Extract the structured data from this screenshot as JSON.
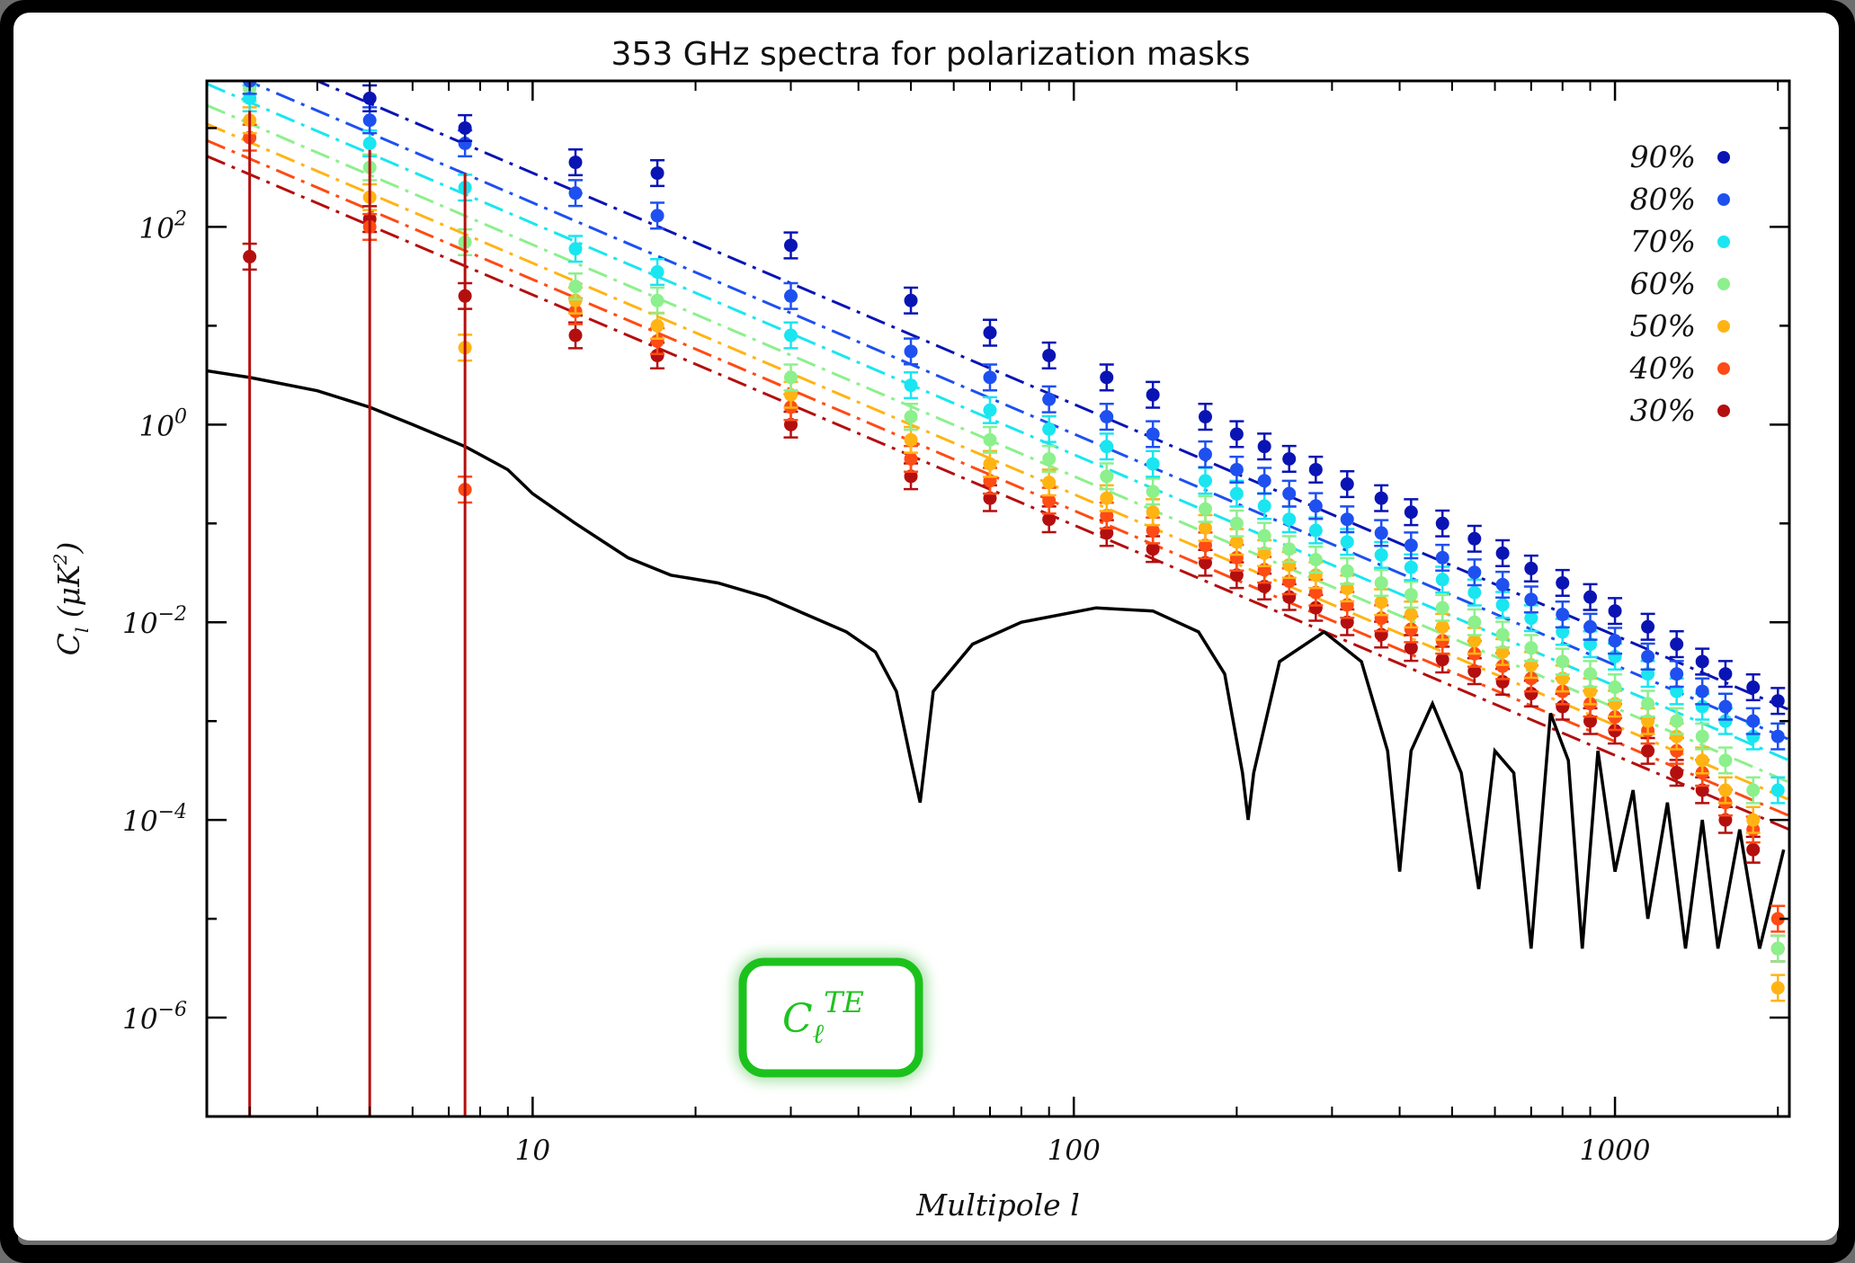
{
  "chart_data": {
    "type": "scatter",
    "title": "353 GHz spectra for polarization masks",
    "xlabel": "Multipole l",
    "ylabel": "C_l (μK²)",
    "x_scale": "log",
    "y_scale": "log",
    "xlim": [
      2.5,
      2100
    ],
    "ylim": [
      1e-07,
      3000
    ],
    "x_ticks": [
      {
        "value": 10,
        "label": "10"
      },
      {
        "value": 100,
        "label": "100"
      },
      {
        "value": 1000,
        "label": "1000"
      }
    ],
    "y_ticks": [
      {
        "value": 1e-06,
        "base": "10",
        "exp": "−6"
      },
      {
        "value": 0.0001,
        "base": "10",
        "exp": "−4"
      },
      {
        "value": 0.01,
        "base": "10",
        "exp": "−2"
      },
      {
        "value": 1,
        "base": "10",
        "exp": "0"
      },
      {
        "value": 100,
        "base": "10",
        "exp": "2"
      }
    ],
    "legend_position": "top-right",
    "annotation": {
      "base": "C",
      "sub": "ℓ",
      "sup": "TE",
      "color": "#1fc21f"
    },
    "x": [
      3,
      5,
      7.5,
      12,
      17,
      30,
      50,
      70,
      90,
      115,
      140,
      175,
      200,
      225,
      250,
      280,
      320,
      370,
      420,
      480,
      550,
      620,
      700,
      800,
      900,
      1000,
      1150,
      1300,
      1450,
      1600,
      1800,
      2000
    ],
    "series": [
      {
        "name": "90%",
        "color": "#0a14b4",
        "values": [
          6000,
          2000,
          1000,
          450,
          350,
          65,
          18,
          8.5,
          5,
          3,
          2,
          1.2,
          0.8,
          0.6,
          0.45,
          0.35,
          0.25,
          0.18,
          0.13,
          0.1,
          0.07,
          0.05,
          0.035,
          0.025,
          0.018,
          0.013,
          0.009,
          0.006,
          0.004,
          0.003,
          0.0022,
          0.0016
        ]
      },
      {
        "name": "80%",
        "color": "#1e50f0",
        "values": [
          3000,
          1200,
          700,
          220,
          130,
          20,
          5.5,
          3,
          1.8,
          1.2,
          0.8,
          0.5,
          0.35,
          0.27,
          0.2,
          0.15,
          0.11,
          0.08,
          0.06,
          0.045,
          0.032,
          0.024,
          0.017,
          0.012,
          0.009,
          0.0065,
          0.0045,
          0.003,
          0.002,
          0.0014,
          0.001,
          0.0007
        ]
      },
      {
        "name": "70%",
        "color": "#19e6f0",
        "values": [
          2000,
          700,
          250,
          60,
          35,
          8,
          2.5,
          1.4,
          0.9,
          0.6,
          0.4,
          0.27,
          0.2,
          0.15,
          0.11,
          0.085,
          0.065,
          0.048,
          0.036,
          0.027,
          0.02,
          0.015,
          0.011,
          0.008,
          0.006,
          0.0045,
          0.003,
          0.002,
          0.0014,
          0.001,
          0.0007,
          0.0002
        ]
      },
      {
        "name": "60%",
        "color": "#8cf08c",
        "values": [
          2500,
          400,
          70,
          25,
          18,
          3,
          1.2,
          0.7,
          0.45,
          0.3,
          0.21,
          0.14,
          0.1,
          0.075,
          0.055,
          0.043,
          0.033,
          0.025,
          0.019,
          0.014,
          0.01,
          0.0075,
          0.0055,
          0.004,
          0.003,
          0.0022,
          0.0015,
          0.001,
          0.0007,
          0.0004,
          0.0002,
          5e-06
        ]
      },
      {
        "name": "50%",
        "color": "#ffb414",
        "values": [
          1200,
          200,
          6,
          18,
          10,
          2,
          0.7,
          0.4,
          0.26,
          0.18,
          0.13,
          0.09,
          0.065,
          0.05,
          0.038,
          0.03,
          0.022,
          0.016,
          0.012,
          0.009,
          0.0065,
          0.005,
          0.0037,
          0.0027,
          0.002,
          0.0015,
          0.001,
          0.0007,
          0.0004,
          0.0002,
          0.0001,
          2e-06
        ]
      },
      {
        "name": "40%",
        "color": "#ff4b14",
        "values": [
          800,
          100,
          0.22,
          14,
          7,
          1.5,
          0.45,
          0.27,
          0.17,
          0.12,
          0.085,
          0.06,
          0.045,
          0.034,
          0.026,
          0.02,
          0.015,
          0.011,
          0.0085,
          0.0065,
          0.0048,
          0.0036,
          0.0027,
          0.002,
          0.0015,
          0.0011,
          0.0008,
          0.0005,
          0.0003,
          0.00015,
          8e-05,
          1e-05
        ]
      },
      {
        "name": "30%",
        "color": "#b40f0f",
        "values": [
          50,
          120,
          20,
          8,
          5,
          1,
          0.3,
          0.18,
          0.11,
          0.08,
          0.055,
          0.04,
          0.03,
          0.023,
          0.018,
          0.014,
          0.01,
          0.0075,
          0.0055,
          0.0042,
          0.0032,
          0.0025,
          0.0019,
          0.0014,
          0.001,
          0.0008,
          0.0005,
          0.0003,
          0.0002,
          0.0001,
          5e-05,
          5e-06
        ]
      }
    ],
    "fit_lines": [
      {
        "series": "90%",
        "x": [
          2.5,
          2100
        ],
        "y": [
          9000,
          0.0013
        ]
      },
      {
        "series": "80%",
        "x": [
          2.5,
          2100
        ],
        "y": [
          4500,
          0.00065
        ]
      },
      {
        "series": "70%",
        "x": [
          2.5,
          2100
        ],
        "y": [
          2800,
          0.0004
        ]
      },
      {
        "series": "60%",
        "x": [
          2.5,
          2100
        ],
        "y": [
          1700,
          0.00024
        ]
      },
      {
        "series": "50%",
        "x": [
          2.5,
          2100
        ],
        "y": [
          1100,
          0.00016
        ]
      },
      {
        "series": "40%",
        "x": [
          2.5,
          2100
        ],
        "y": [
          750,
          0.00011
        ]
      },
      {
        "series": "30%",
        "x": [
          2.5,
          2100
        ],
        "y": [
          520,
          8e-05
        ]
      }
    ],
    "model_curve": {
      "color": "#000000",
      "points": [
        [
          2.5,
          3.5
        ],
        [
          3,
          3
        ],
        [
          4,
          2.2
        ],
        [
          5,
          1.5
        ],
        [
          6,
          1.0
        ],
        [
          7.5,
          0.6
        ],
        [
          9,
          0.35
        ],
        [
          10,
          0.2
        ],
        [
          12,
          0.1
        ],
        [
          15,
          0.045
        ],
        [
          18,
          0.03
        ],
        [
          22,
          0.025
        ],
        [
          27,
          0.018
        ],
        [
          32,
          0.012
        ],
        [
          38,
          0.008
        ],
        [
          43,
          0.005
        ],
        [
          47,
          0.002
        ],
        [
          50,
          0.0004
        ],
        [
          52,
          0.00015
        ],
        [
          55,
          0.002
        ],
        [
          65,
          0.006
        ],
        [
          80,
          0.01
        ],
        [
          110,
          0.014
        ],
        [
          140,
          0.013
        ],
        [
          170,
          0.008
        ],
        [
          190,
          0.003
        ],
        [
          205,
          0.0003
        ],
        [
          210,
          0.0001
        ],
        [
          215,
          0.0003
        ],
        [
          240,
          0.004
        ],
        [
          290,
          0.008
        ],
        [
          340,
          0.004
        ],
        [
          380,
          0.0005
        ],
        [
          400,
          3e-05
        ],
        [
          420,
          0.0005
        ],
        [
          460,
          0.0015
        ],
        [
          520,
          0.0003
        ],
        [
          560,
          2e-05
        ],
        [
          600,
          0.0005
        ],
        [
          650,
          0.0003
        ],
        [
          700,
          5e-06
        ],
        [
          760,
          0.0012
        ],
        [
          820,
          0.0004
        ],
        [
          870,
          5e-06
        ],
        [
          930,
          0.0005
        ],
        [
          1000,
          3e-05
        ],
        [
          1080,
          0.0002
        ],
        [
          1150,
          1e-05
        ],
        [
          1250,
          0.00015
        ],
        [
          1350,
          5e-06
        ],
        [
          1450,
          0.0001
        ],
        [
          1550,
          5e-06
        ],
        [
          1700,
          8e-05
        ],
        [
          1850,
          5e-06
        ],
        [
          2050,
          5e-05
        ]
      ]
    }
  }
}
